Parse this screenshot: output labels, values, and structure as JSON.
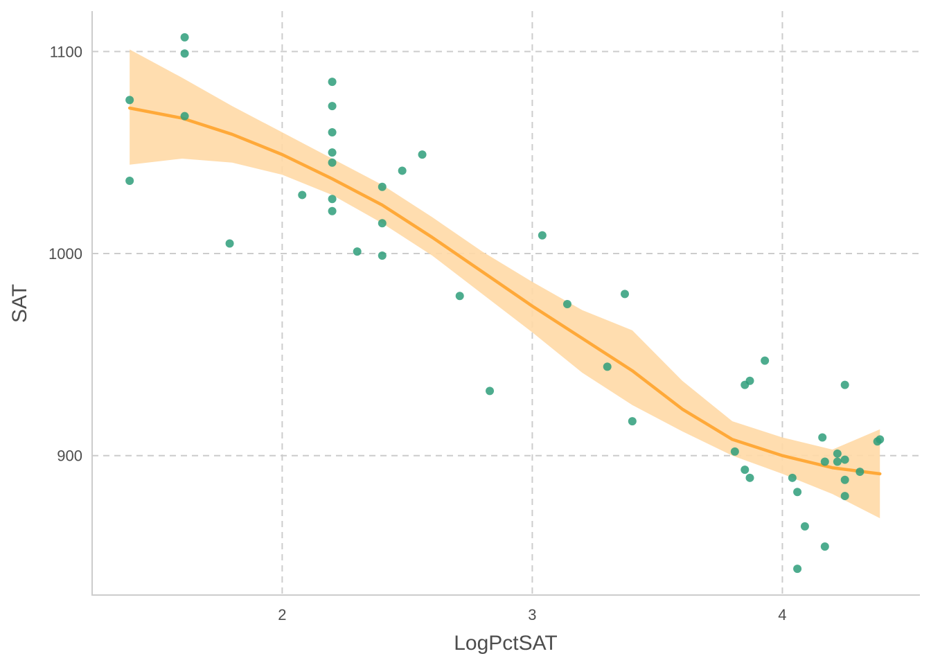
{
  "chart_data": {
    "type": "scatter",
    "xlabel": "LogPctSAT",
    "ylabel": "SAT",
    "xlim": [
      1.24,
      4.55
    ],
    "ylim": [
      831,
      1120
    ],
    "x_ticks": [
      2,
      3,
      4
    ],
    "y_ticks": [
      900,
      1000,
      1100
    ],
    "x_tick_labels": [
      "2",
      "3",
      "4"
    ],
    "y_tick_labels": [
      "900",
      "1000",
      "1100"
    ],
    "grid": true,
    "legend": "none",
    "colors": {
      "points": "#2e9e7a",
      "smooth_line": "#ffa939",
      "ribbon": "#ffd9a6",
      "grid": "#cccccc",
      "axis": "#cccccc",
      "text": "#4d4d4d"
    },
    "points": [
      {
        "x": 1.39,
        "y": 1076
      },
      {
        "x": 1.39,
        "y": 1036
      },
      {
        "x": 1.61,
        "y": 1107
      },
      {
        "x": 1.61,
        "y": 1099
      },
      {
        "x": 1.61,
        "y": 1068
      },
      {
        "x": 1.79,
        "y": 1005
      },
      {
        "x": 2.08,
        "y": 1029
      },
      {
        "x": 2.2,
        "y": 1085
      },
      {
        "x": 2.2,
        "y": 1073
      },
      {
        "x": 2.2,
        "y": 1060
      },
      {
        "x": 2.2,
        "y": 1050
      },
      {
        "x": 2.2,
        "y": 1045
      },
      {
        "x": 2.2,
        "y": 1027
      },
      {
        "x": 2.2,
        "y": 1021
      },
      {
        "x": 2.3,
        "y": 1001
      },
      {
        "x": 2.4,
        "y": 1033
      },
      {
        "x": 2.4,
        "y": 1015
      },
      {
        "x": 2.4,
        "y": 999
      },
      {
        "x": 2.48,
        "y": 1041
      },
      {
        "x": 2.56,
        "y": 1049
      },
      {
        "x": 2.71,
        "y": 979
      },
      {
        "x": 2.83,
        "y": 932
      },
      {
        "x": 3.04,
        "y": 1009
      },
      {
        "x": 3.14,
        "y": 975
      },
      {
        "x": 3.3,
        "y": 944
      },
      {
        "x": 3.37,
        "y": 980
      },
      {
        "x": 3.4,
        "y": 917
      },
      {
        "x": 3.81,
        "y": 902
      },
      {
        "x": 3.85,
        "y": 935
      },
      {
        "x": 3.85,
        "y": 893
      },
      {
        "x": 3.87,
        "y": 937
      },
      {
        "x": 3.87,
        "y": 889
      },
      {
        "x": 3.93,
        "y": 947
      },
      {
        "x": 4.04,
        "y": 889
      },
      {
        "x": 4.06,
        "y": 882
      },
      {
        "x": 4.06,
        "y": 844
      },
      {
        "x": 4.09,
        "y": 865
      },
      {
        "x": 4.16,
        "y": 909
      },
      {
        "x": 4.17,
        "y": 897
      },
      {
        "x": 4.17,
        "y": 855
      },
      {
        "x": 4.22,
        "y": 901
      },
      {
        "x": 4.22,
        "y": 897
      },
      {
        "x": 4.25,
        "y": 935
      },
      {
        "x": 4.25,
        "y": 898
      },
      {
        "x": 4.25,
        "y": 888
      },
      {
        "x": 4.25,
        "y": 880
      },
      {
        "x": 4.31,
        "y": 892
      },
      {
        "x": 4.38,
        "y": 907
      },
      {
        "x": 4.39,
        "y": 908
      }
    ],
    "smooth": {
      "x": [
        1.39,
        1.6,
        1.8,
        2.0,
        2.2,
        2.4,
        2.6,
        2.8,
        3.0,
        3.2,
        3.4,
        3.6,
        3.8,
        4.0,
        4.2,
        4.39
      ],
      "y": [
        1072,
        1067,
        1059,
        1049,
        1037,
        1024,
        1008,
        991,
        974,
        958,
        942,
        923,
        908,
        900,
        894,
        891
      ],
      "lower": [
        1044,
        1047,
        1045,
        1039,
        1029,
        1015,
        999,
        980,
        961,
        941,
        925,
        912,
        900,
        891,
        881,
        869
      ],
      "upper": [
        1101,
        1087,
        1073,
        1060,
        1047,
        1034,
        1018,
        1001,
        986,
        972,
        962,
        937,
        917,
        909,
        903,
        913
      ]
    }
  }
}
